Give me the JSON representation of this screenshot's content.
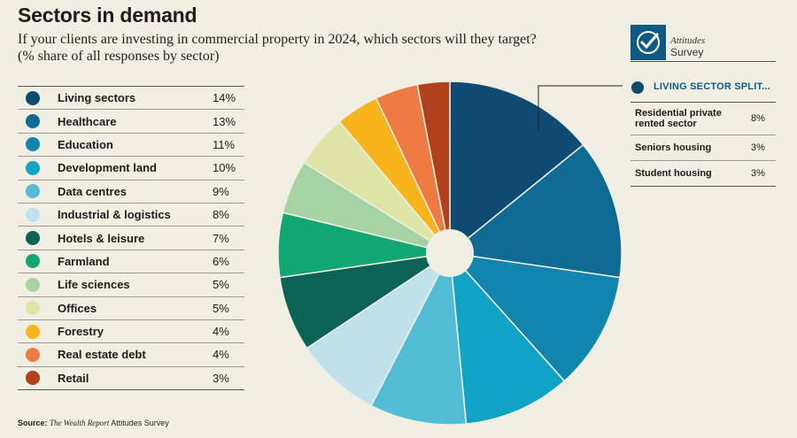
{
  "header": {
    "title": "Sectors in demand",
    "subtitle_line1": "If your clients are investing in commercial property in 2024, which sectors will they target?",
    "subtitle_line2": "(% share of all responses by sector)"
  },
  "chart_data": {
    "type": "pie",
    "variant": "donut",
    "title": "Sectors in demand",
    "unit": "%",
    "categories": [
      "Living sectors",
      "Healthcare",
      "Education",
      "Development land",
      "Data centres",
      "Industrial & logistics",
      "Hotels & leisure",
      "Farmland",
      "Life sciences",
      "Offices",
      "Forestry",
      "Real estate debt",
      "Retail"
    ],
    "values": [
      14,
      13,
      11,
      10,
      9,
      8,
      7,
      6,
      5,
      5,
      4,
      4,
      3
    ],
    "value_labels": [
      "14%",
      "13%",
      "11%",
      "10%",
      "9%",
      "8%",
      "7%",
      "6%",
      "5%",
      "5%",
      "4%",
      "4%",
      "3%"
    ],
    "colors": [
      "#0f4a73",
      "#0f6b94",
      "#1185ad",
      "#10a3c6",
      "#52bcd4",
      "#bfe2ec",
      "#0c6355",
      "#10a774",
      "#a6d3a4",
      "#dde6a6",
      "#f7b41c",
      "#ef7b42",
      "#b0411a"
    ],
    "legend_position": "left"
  },
  "logo": {
    "line1": "Attitudes",
    "line2": "Survey"
  },
  "living_split": {
    "title": "LIVING SECTOR SPLIT...",
    "rows": [
      {
        "label_line1": "Residential private",
        "label_line2": "rented sector",
        "value": "8%"
      },
      {
        "label_line1": "Seniors housing",
        "label_line2": "",
        "value": "3%"
      },
      {
        "label_line1": "Student housing",
        "label_line2": "",
        "value": "3%"
      }
    ]
  },
  "source": {
    "prefix": "Source:",
    "publication": "The Wealth Report",
    "suffix": "Attitudes Survey"
  }
}
